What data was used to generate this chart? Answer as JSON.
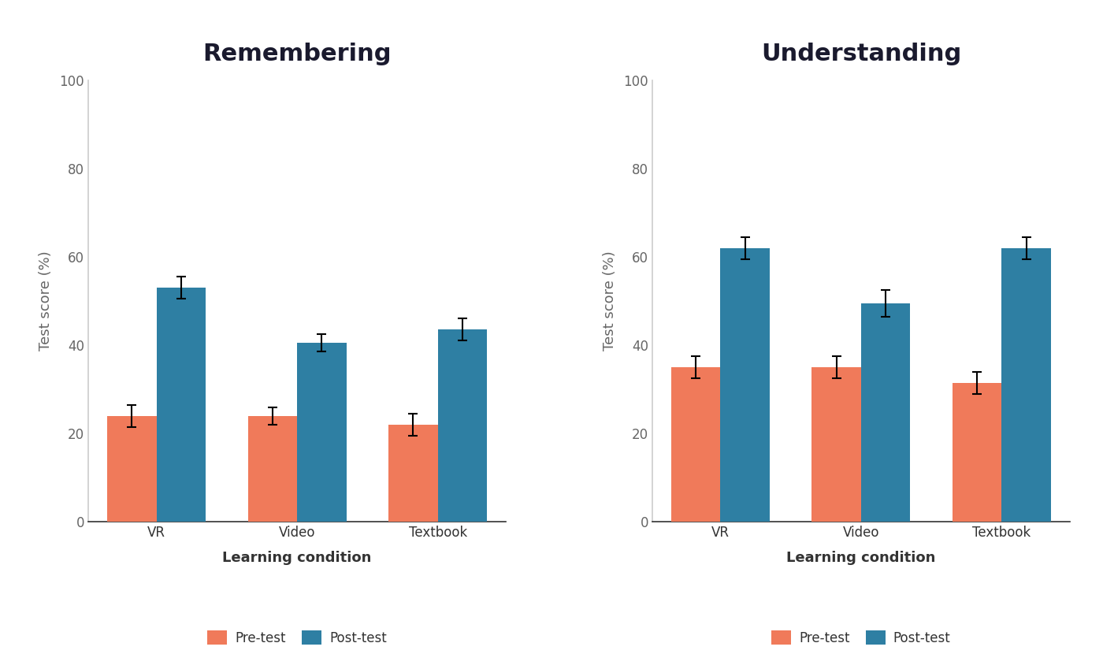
{
  "remembering": {
    "title": "Remembering",
    "categories": [
      "VR",
      "Video",
      "Textbook"
    ],
    "pretest_means": [
      24,
      24,
      22
    ],
    "posttest_means": [
      53,
      40.5,
      43.5
    ],
    "pretest_errors": [
      2.5,
      2.0,
      2.5
    ],
    "posttest_errors": [
      2.5,
      2.0,
      2.5
    ]
  },
  "understanding": {
    "title": "Understanding",
    "categories": [
      "VR",
      "Video",
      "Textbook"
    ],
    "pretest_means": [
      35,
      35,
      31.5
    ],
    "posttest_means": [
      62,
      49.5,
      62
    ],
    "pretest_errors": [
      2.5,
      2.5,
      2.5
    ],
    "posttest_errors": [
      2.5,
      3.0,
      2.5
    ]
  },
  "color_pretest": "#F07A5A",
  "color_posttest": "#2E7FA3",
  "ylabel": "Test score (%)",
  "xlabel": "Learning condition",
  "ylim": [
    0,
    100
  ],
  "yticks": [
    0,
    20,
    40,
    60,
    80,
    100
  ],
  "bar_width": 0.35,
  "legend_labels": [
    "Pre-test",
    "Post-test"
  ],
  "title_fontsize": 22,
  "axis_label_fontsize": 13,
  "tick_fontsize": 12,
  "legend_fontsize": 12,
  "background_color": "#ffffff",
  "figure_background": "#ffffff"
}
